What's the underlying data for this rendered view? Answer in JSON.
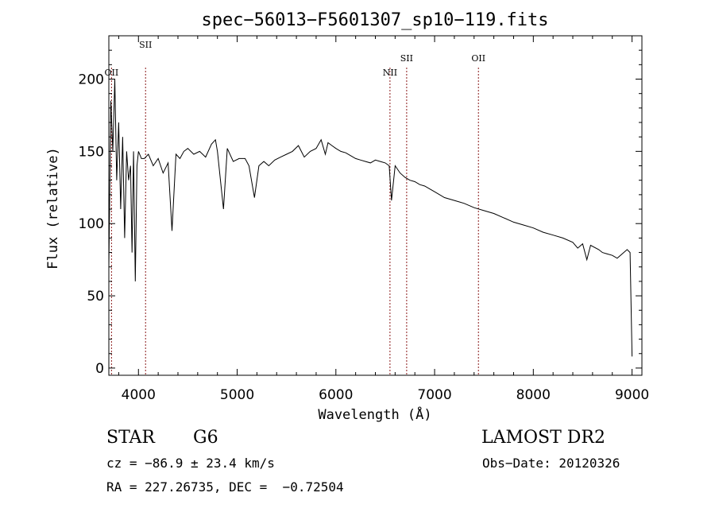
{
  "chart_data": {
    "type": "line",
    "title": "spec−56013−F5601307_sp10−119.fits",
    "xlabel": "Wavelength (Å)",
    "ylabel": "Flux (relative)",
    "xlim": [
      3700,
      9100
    ],
    "ylim": [
      -5,
      230
    ],
    "x_ticks": [
      4000,
      5000,
      6000,
      7000,
      8000,
      9000
    ],
    "y_ticks": [
      0,
      50,
      100,
      150,
      200
    ],
    "grid": false,
    "line_color": "#000000",
    "marker_color": "#8b1a1a",
    "series": [
      {
        "x": [
          3700,
          3720,
          3740,
          3760,
          3780,
          3800,
          3820,
          3840,
          3860,
          3880,
          3900,
          3920,
          3935,
          3950,
          3968,
          3985,
          4000,
          4030,
          4060,
          4101,
          4150,
          4200,
          4250,
          4300,
          4340,
          4380,
          4420,
          4460,
          4500,
          4560,
          4620,
          4680,
          4740,
          4780,
          4800,
          4861,
          4900,
          4960,
          5020,
          5080,
          5120,
          5175,
          5220,
          5270,
          5320,
          5380,
          5440,
          5500,
          5560,
          5620,
          5680,
          5740,
          5800,
          5850,
          5893,
          5920,
          5960,
          6000,
          6050,
          6100,
          6150,
          6200,
          6250,
          6300,
          6350,
          6400,
          6450,
          6500,
          6540,
          6563,
          6600,
          6650,
          6700,
          6750,
          6800,
          6850,
          6900,
          6950,
          7000,
          7100,
          7200,
          7300,
          7400,
          7500,
          7600,
          7700,
          7800,
          7900,
          8000,
          8100,
          8200,
          8300,
          8400,
          8450,
          8500,
          8542,
          8580,
          8662,
          8700,
          8800,
          8850,
          8900,
          8950,
          8980,
          9000
        ],
        "y": [
          70,
          185,
          150,
          200,
          130,
          170,
          110,
          160,
          90,
          150,
          130,
          140,
          80,
          150,
          60,
          140,
          150,
          145,
          145,
          148,
          140,
          145,
          135,
          142,
          95,
          148,
          145,
          150,
          152,
          148,
          150,
          146,
          155,
          158,
          150,
          110,
          152,
          143,
          145,
          145,
          140,
          118,
          140,
          143,
          140,
          144,
          146,
          148,
          150,
          154,
          146,
          150,
          152,
          158,
          148,
          156,
          154,
          152,
          150,
          149,
          147,
          145,
          144,
          143,
          142,
          144,
          143,
          142,
          140,
          116,
          140,
          135,
          132,
          130,
          129,
          127,
          126,
          124,
          122,
          118,
          116,
          114,
          111,
          109,
          107,
          104,
          101,
          99,
          97,
          94,
          92,
          90,
          87,
          83,
          86,
          75,
          85,
          82,
          80,
          78,
          76,
          79,
          82,
          80,
          8
        ]
      }
    ],
    "line_markers": [
      {
        "x": 3727,
        "label": "OII"
      },
      {
        "x": 4072,
        "label": "SII"
      },
      {
        "x": 6548,
        "label": "NII"
      },
      {
        "x": 6717,
        "label": "SII"
      },
      {
        "x": 7444,
        "label": "OII"
      }
    ]
  },
  "info": {
    "object_class": "STAR",
    "subclass": "G6",
    "survey": "LAMOST DR2",
    "cz": "cz = −86.9 ± 23.4 km/s",
    "obs_date": "Obs−Date: 20120326",
    "coords": "RA = 227.26735, DEC =  −0.72504"
  }
}
